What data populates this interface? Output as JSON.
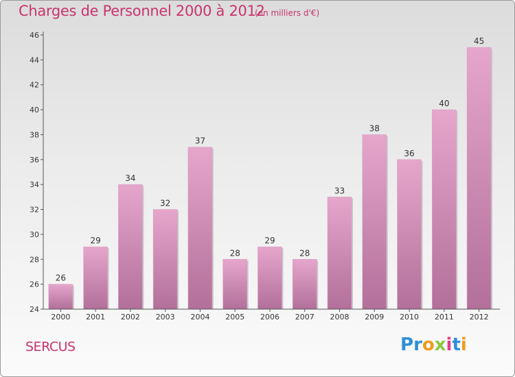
{
  "title": "Charges de Personnel 2000 à 2012",
  "subtitle": "(en milliers d'€)",
  "commune": "SERCUS",
  "logo": {
    "text": "Proxiti",
    "letters": [
      {
        "ch": "P",
        "color": "#2f8fd6"
      },
      {
        "ch": "r",
        "color": "#2f8fd6"
      },
      {
        "ch": "o",
        "color": "#f19a1c"
      },
      {
        "ch": "x",
        "color": "#8cc63f"
      },
      {
        "ch": "i",
        "color": "#e23c8c"
      },
      {
        "ch": "t",
        "color": "#2f8fd6"
      },
      {
        "ch": "i",
        "color": "#f19a1c"
      }
    ]
  },
  "colors": {
    "accent": "#c8346e",
    "bar_top": "#e6a6cc",
    "bar_bottom": "#b2709a"
  },
  "chart_data": {
    "type": "bar",
    "categories": [
      "2000",
      "2001",
      "2002",
      "2003",
      "2004",
      "2005",
      "2006",
      "2007",
      "2008",
      "2009",
      "2010",
      "2011",
      "2012"
    ],
    "values": [
      26,
      29,
      34,
      32,
      37,
      28,
      29,
      28,
      33,
      38,
      36,
      40,
      45
    ],
    "ylim": [
      24,
      46
    ],
    "yticks": [
      24,
      26,
      28,
      30,
      32,
      34,
      36,
      38,
      40,
      42,
      44,
      46
    ],
    "grid": false,
    "xlabel": "",
    "ylabel": ""
  }
}
